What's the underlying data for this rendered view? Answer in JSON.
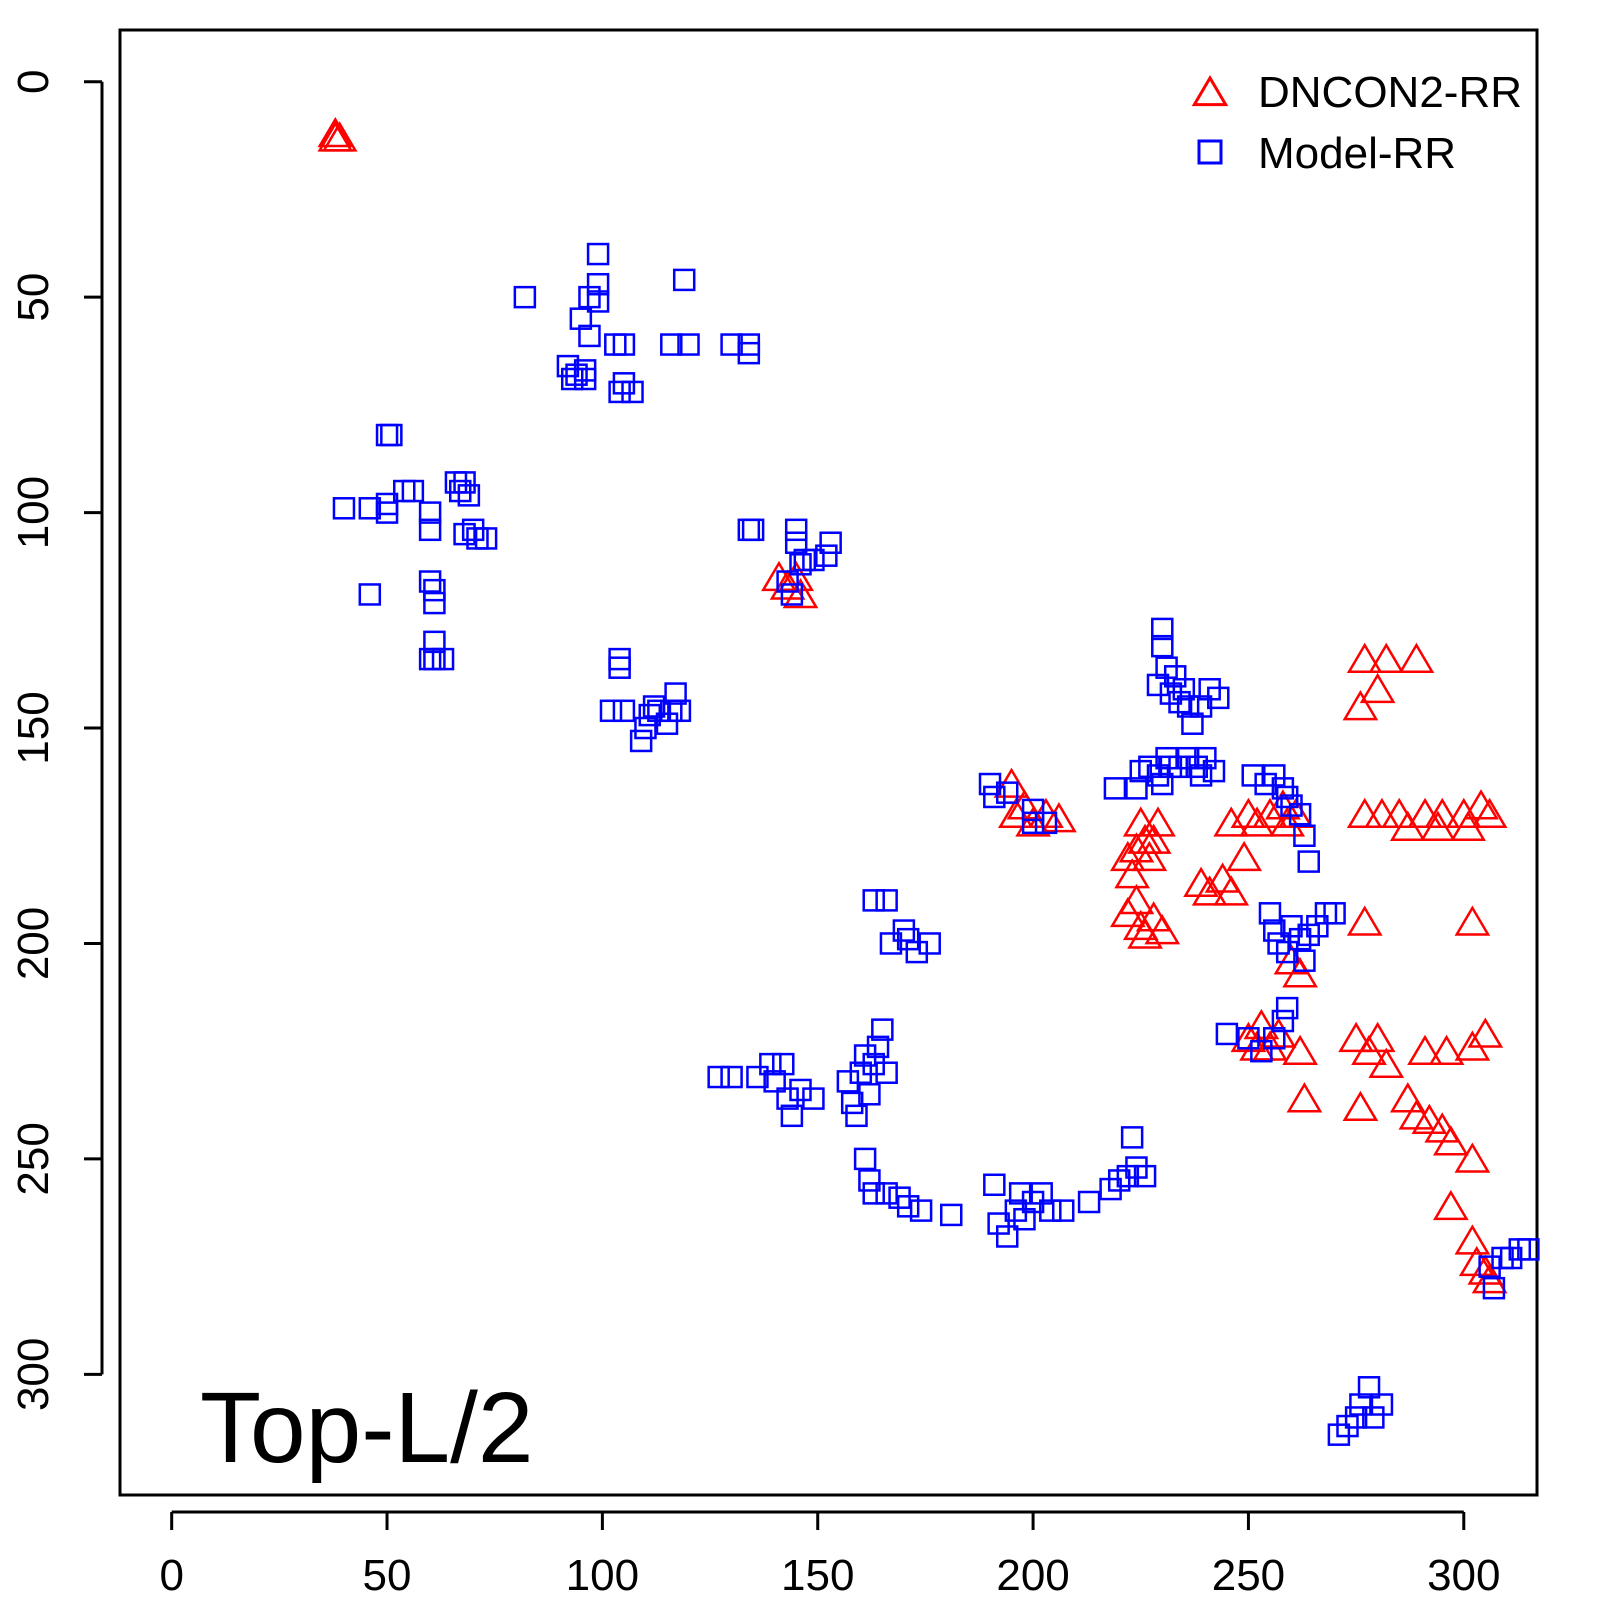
{
  "chart_data": {
    "type": "scatter",
    "title": "",
    "xlabel": "",
    "ylabel": "",
    "xlim": [
      -12,
      317
    ],
    "ylim": [
      -12,
      328
    ],
    "y_axis_reversed": true,
    "x_ticks": [
      0,
      50,
      100,
      150,
      200,
      250,
      300
    ],
    "y_ticks": [
      0,
      50,
      100,
      150,
      200,
      250,
      300
    ],
    "grid": false,
    "legend_position": "top-right",
    "panel_label": "Top-L/2",
    "series": [
      {
        "name": "DNCON2-RR",
        "marker": "triangle",
        "color": "#ff0000",
        "points": [
          [
            38,
            12
          ],
          [
            38,
            13
          ],
          [
            39,
            13
          ],
          [
            141,
            115
          ],
          [
            143,
            117
          ],
          [
            145,
            115
          ],
          [
            146,
            119
          ],
          [
            195,
            163
          ],
          [
            196,
            170
          ],
          [
            198,
            168
          ],
          [
            200,
            172
          ],
          [
            203,
            170
          ],
          [
            206,
            171
          ],
          [
            222,
            180
          ],
          [
            223,
            184
          ],
          [
            224,
            178
          ],
          [
            225,
            172
          ],
          [
            226,
            176
          ],
          [
            227,
            180
          ],
          [
            228,
            176
          ],
          [
            229,
            172
          ],
          [
            222,
            193
          ],
          [
            224,
            190
          ],
          [
            225,
            196
          ],
          [
            226,
            198
          ],
          [
            228,
            194
          ],
          [
            230,
            197
          ],
          [
            239,
            186
          ],
          [
            241,
            188
          ],
          [
            244,
            185
          ],
          [
            246,
            188
          ],
          [
            246,
            172
          ],
          [
            249,
            180
          ],
          [
            250,
            170
          ],
          [
            252,
            172
          ],
          [
            255,
            170
          ],
          [
            258,
            168
          ],
          [
            259,
            172
          ],
          [
            261,
            170
          ],
          [
            260,
            204
          ],
          [
            262,
            207
          ],
          [
            250,
            222
          ],
          [
            252,
            224
          ],
          [
            253,
            219
          ],
          [
            255,
            224
          ],
          [
            257,
            221
          ],
          [
            262,
            225
          ],
          [
            263,
            236
          ],
          [
            277,
            134
          ],
          [
            282,
            134
          ],
          [
            289,
            134
          ],
          [
            276,
            145
          ],
          [
            280,
            141
          ],
          [
            277,
            170
          ],
          [
            281,
            170
          ],
          [
            285,
            170
          ],
          [
            291,
            170
          ],
          [
            295,
            170
          ],
          [
            300,
            170
          ],
          [
            304,
            168
          ],
          [
            306,
            170
          ],
          [
            287,
            173
          ],
          [
            294,
            173
          ],
          [
            301,
            173
          ],
          [
            277,
            195
          ],
          [
            302,
            195
          ],
          [
            275,
            222
          ],
          [
            278,
            225
          ],
          [
            280,
            222
          ],
          [
            282,
            228
          ],
          [
            291,
            225
          ],
          [
            296,
            225
          ],
          [
            302,
            224
          ],
          [
            305,
            221
          ],
          [
            276,
            238
          ],
          [
            287,
            236
          ],
          [
            289,
            240
          ],
          [
            292,
            241
          ],
          [
            295,
            243
          ],
          [
            297,
            246
          ],
          [
            302,
            250
          ],
          [
            297,
            261
          ],
          [
            302,
            269
          ],
          [
            303,
            274
          ],
          [
            305,
            276
          ],
          [
            306,
            278
          ]
        ]
      },
      {
        "name": "Model-RR",
        "marker": "square",
        "color": "#0000ff",
        "points": [
          [
            82,
            50
          ],
          [
            97,
            50
          ],
          [
            99,
            40
          ],
          [
            99,
            47
          ],
          [
            99,
            51
          ],
          [
            95,
            55
          ],
          [
            97,
            59
          ],
          [
            103,
            61
          ],
          [
            105,
            61
          ],
          [
            119,
            46
          ],
          [
            116,
            61
          ],
          [
            120,
            61
          ],
          [
            130,
            61
          ],
          [
            134,
            61
          ],
          [
            134,
            63
          ],
          [
            92,
            66
          ],
          [
            94,
            68
          ],
          [
            96,
            67
          ],
          [
            93,
            69
          ],
          [
            96,
            69
          ],
          [
            105,
            70
          ],
          [
            104,
            72
          ],
          [
            107,
            72
          ],
          [
            50,
            82
          ],
          [
            51,
            82
          ],
          [
            40,
            99
          ],
          [
            46,
            99
          ],
          [
            50,
            98
          ],
          [
            50,
            100
          ],
          [
            54,
            95
          ],
          [
            56,
            95
          ],
          [
            60,
            100
          ],
          [
            60,
            104
          ],
          [
            66,
            93
          ],
          [
            67,
            95
          ],
          [
            68,
            93
          ],
          [
            69,
            96
          ],
          [
            70,
            104
          ],
          [
            71,
            106
          ],
          [
            73,
            106
          ],
          [
            46,
            119
          ],
          [
            60,
            116
          ],
          [
            61,
            118
          ],
          [
            61,
            121
          ],
          [
            61,
            130
          ],
          [
            60,
            134
          ],
          [
            61,
            134
          ],
          [
            63,
            134
          ],
          [
            68,
            105
          ],
          [
            134,
            104
          ],
          [
            135,
            104
          ],
          [
            145,
            104
          ],
          [
            145,
            107
          ],
          [
            147,
            111
          ],
          [
            149,
            111
          ],
          [
            152,
            110
          ],
          [
            153,
            107
          ],
          [
            146,
            112
          ],
          [
            143,
            116
          ],
          [
            144,
            119
          ],
          [
            104,
            134
          ],
          [
            104,
            136
          ],
          [
            102,
            146
          ],
          [
            105,
            146
          ],
          [
            109,
            153
          ],
          [
            110,
            150
          ],
          [
            111,
            147
          ],
          [
            112,
            145
          ],
          [
            113,
            146
          ],
          [
            115,
            149
          ],
          [
            116,
            146
          ],
          [
            117,
            142
          ],
          [
            118,
            146
          ],
          [
            190,
            163
          ],
          [
            191,
            166
          ],
          [
            194,
            165
          ],
          [
            200,
            169
          ],
          [
            200,
            172
          ],
          [
            203,
            172
          ],
          [
            219,
            164
          ],
          [
            224,
            164
          ],
          [
            225,
            160
          ],
          [
            227,
            159
          ],
          [
            229,
            161
          ],
          [
            230,
            163
          ],
          [
            231,
            157
          ],
          [
            232,
            159
          ],
          [
            234,
            159
          ],
          [
            236,
            157
          ],
          [
            238,
            159
          ],
          [
            239,
            161
          ],
          [
            240,
            157
          ],
          [
            242,
            160
          ],
          [
            230,
            127
          ],
          [
            230,
            131
          ],
          [
            231,
            136
          ],
          [
            233,
            138
          ],
          [
            229,
            140
          ],
          [
            232,
            142
          ],
          [
            234,
            144
          ],
          [
            235,
            141
          ],
          [
            236,
            145
          ],
          [
            237,
            149
          ],
          [
            239,
            145
          ],
          [
            241,
            141
          ],
          [
            243,
            143
          ],
          [
            251,
            161
          ],
          [
            254,
            163
          ],
          [
            256,
            161
          ],
          [
            258,
            164
          ],
          [
            259,
            166
          ],
          [
            260,
            168
          ],
          [
            262,
            170
          ],
          [
            263,
            175
          ],
          [
            264,
            181
          ],
          [
            163,
            190
          ],
          [
            166,
            190
          ],
          [
            170,
            197
          ],
          [
            167,
            200
          ],
          [
            171,
            199
          ],
          [
            173,
            202
          ],
          [
            176,
            200
          ],
          [
            255,
            193
          ],
          [
            256,
            197
          ],
          [
            257,
            200
          ],
          [
            259,
            202
          ],
          [
            260,
            196
          ],
          [
            262,
            199
          ],
          [
            263,
            204
          ],
          [
            264,
            198
          ],
          [
            266,
            196
          ],
          [
            268,
            193
          ],
          [
            270,
            193
          ],
          [
            245,
            221
          ],
          [
            250,
            222
          ],
          [
            253,
            225
          ],
          [
            256,
            222
          ],
          [
            258,
            218
          ],
          [
            259,
            215
          ],
          [
            127,
            231
          ],
          [
            130,
            231
          ],
          [
            136,
            231
          ],
          [
            139,
            228
          ],
          [
            140,
            232
          ],
          [
            142,
            228
          ],
          [
            143,
            236
          ],
          [
            144,
            240
          ],
          [
            146,
            234
          ],
          [
            149,
            236
          ],
          [
            157,
            232
          ],
          [
            158,
            237
          ],
          [
            159,
            240
          ],
          [
            160,
            230
          ],
          [
            161,
            226
          ],
          [
            162,
            235
          ],
          [
            163,
            228
          ],
          [
            164,
            224
          ],
          [
            165,
            220
          ],
          [
            166,
            230
          ],
          [
            161,
            250
          ],
          [
            162,
            255
          ],
          [
            163,
            258
          ],
          [
            166,
            258
          ],
          [
            169,
            259
          ],
          [
            171,
            261
          ],
          [
            174,
            262
          ],
          [
            181,
            263
          ],
          [
            191,
            256
          ],
          [
            192,
            265
          ],
          [
            194,
            268
          ],
          [
            196,
            262
          ],
          [
            197,
            258
          ],
          [
            198,
            264
          ],
          [
            200,
            260
          ],
          [
            202,
            258
          ],
          [
            204,
            262
          ],
          [
            207,
            262
          ],
          [
            213,
            260
          ],
          [
            218,
            257
          ],
          [
            220,
            255
          ],
          [
            222,
            254
          ],
          [
            223,
            245
          ],
          [
            224,
            252
          ],
          [
            226,
            254
          ],
          [
            306,
            275
          ],
          [
            307,
            280
          ],
          [
            309,
            273
          ],
          [
            311,
            273
          ],
          [
            313,
            271
          ],
          [
            315,
            271
          ],
          [
            271,
            314
          ],
          [
            273,
            312
          ],
          [
            275,
            310
          ],
          [
            276,
            307
          ],
          [
            278,
            303
          ],
          [
            279,
            310
          ],
          [
            281,
            307
          ]
        ]
      }
    ]
  }
}
